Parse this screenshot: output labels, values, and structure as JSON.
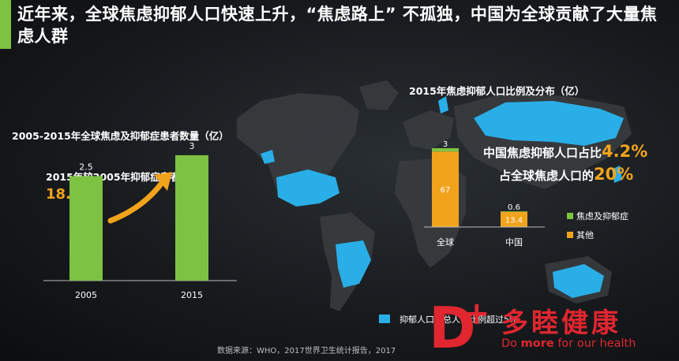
{
  "headline": "近年来，全球焦虑抑郁人口快速上升，“焦虑路上” 不孤独，中国为全球贡献了大量焦虑人群",
  "colors": {
    "green": "#7dc243",
    "orange": "#f2a31c",
    "blue": "#29aee8",
    "accent": "#7dc243",
    "brand_red": "#e0262f"
  },
  "left_chart": {
    "title": "2005-2015年全球焦虑及抑郁症患者数量（亿）",
    "callout_label": "2015年较2005年抑郁症患者上升",
    "callout_value": "18.4%"
  },
  "right_chart": {
    "title": "2015年焦虑抑郁人口比例及分布（亿）",
    "stat1_label": "中国焦虑抑郁人口占比",
    "stat1_value": "4.2%",
    "stat2_label": "占全球焦虑人口的",
    "stat2_value": "20%"
  },
  "map": {
    "legend_label": "抑郁人口占总人口比例超过5%"
  },
  "chart_data": [
    {
      "type": "bar",
      "title": "2005-2015年全球焦虑及抑郁症患者数量（亿）",
      "categories": [
        "2005",
        "2015"
      ],
      "values": [
        2.5,
        3
      ],
      "value_labels": [
        "2.5",
        "3"
      ],
      "ylim": [
        0,
        3.3
      ],
      "grid": false
    },
    {
      "type": "bar",
      "stacked": true,
      "title": "2015年焦虑抑郁人口比例及分布（亿）",
      "categories": [
        "全球",
        "中国"
      ],
      "series": [
        {
          "name": "焦虑及抑郁症",
          "values": [
            3,
            0.6
          ],
          "labels": [
            "3",
            "0.6"
          ]
        },
        {
          "name": "其他",
          "values": [
            67,
            13.4
          ],
          "labels": [
            "67",
            "13.4"
          ]
        }
      ],
      "legend_position": "right",
      "grid": false
    }
  ],
  "source_text": "数据来源：WHO，2017世界卫生统计报告，2017",
  "logo": {
    "cn": "多睦健康",
    "en_pre": "Do ",
    "en_bold": "more",
    "en_post": " for our health",
    "mark_letter": "D",
    "mark_plus": "+"
  }
}
